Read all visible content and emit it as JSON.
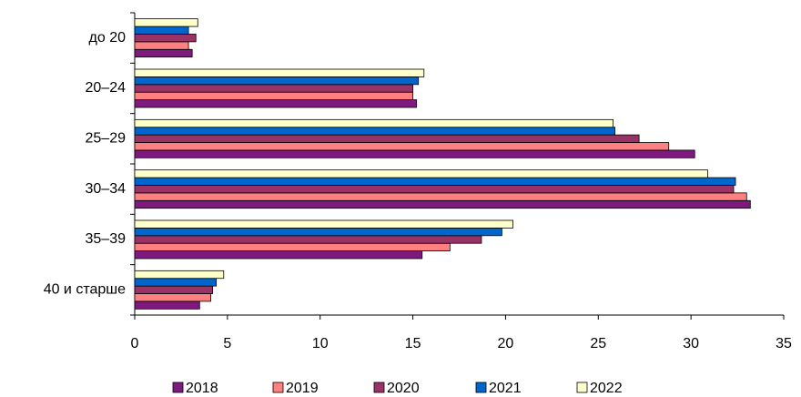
{
  "chart_data": {
    "type": "barh",
    "categories": [
      "до 20",
      "20–24",
      "25–29",
      "30–34",
      "35–39",
      "40 и старше"
    ],
    "series": [
      {
        "name": "2018",
        "color": "#7e1a7e",
        "values": [
          3.1,
          15.2,
          30.2,
          33.2,
          15.5,
          3.5
        ]
      },
      {
        "name": "2019",
        "color": "#ff8080",
        "values": [
          2.9,
          15.0,
          28.8,
          33.0,
          17.0,
          4.1
        ]
      },
      {
        "name": "2020",
        "color": "#993366",
        "values": [
          3.3,
          15.0,
          27.2,
          32.3,
          18.7,
          4.2
        ]
      },
      {
        "name": "2021",
        "color": "#0066cc",
        "values": [
          2.9,
          15.3,
          25.9,
          32.4,
          19.8,
          4.4
        ]
      },
      {
        "name": "2022",
        "color": "#ffffcc",
        "values": [
          3.4,
          15.6,
          25.8,
          30.9,
          20.4,
          4.8
        ]
      }
    ],
    "xlim": [
      0,
      35
    ],
    "xticks": [
      0,
      5,
      10,
      15,
      20,
      25,
      30,
      35
    ],
    "grid": false,
    "legend": "bottom"
  }
}
